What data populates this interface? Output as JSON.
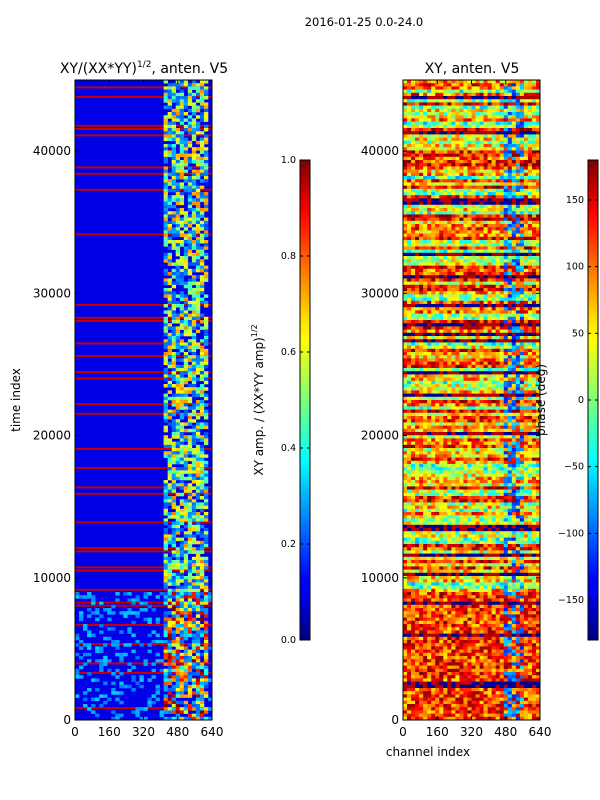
{
  "suptitle": "2016-01-25 0.0-24.0",
  "chart_data": [
    {
      "type": "heatmap",
      "title": "XY/(XX*YY)^1/2, anten. V5",
      "title_main": "XY/(XX*YY)",
      "title_sup": "1/2",
      "title_tail": ", anten. V5",
      "xlabel": "",
      "ylabel": "time index",
      "xlim": [
        0,
        640
      ],
      "ylim": [
        0,
        45000
      ],
      "xticks": [
        0,
        160,
        320,
        480,
        640
      ],
      "yticks": [
        0,
        10000,
        20000,
        30000,
        40000
      ],
      "colormap": "jet",
      "colorbar": {
        "label": "XY amp. / (XX*YY amp)^1/2",
        "label_main": "XY amp. / (XX*YY amp)",
        "label_sup": "1/2",
        "range": [
          0.0,
          1.0
        ],
        "ticks": [
          0.0,
          0.2,
          0.4,
          0.6,
          0.8,
          1.0
        ],
        "tick_labels": [
          "0.0",
          "0.2",
          "0.4",
          "0.6",
          "0.8",
          "1.0"
        ]
      }
    },
    {
      "type": "heatmap",
      "title": "XY, anten. V5",
      "xlabel": "channel index",
      "ylabel": "",
      "xlim": [
        0,
        640
      ],
      "ylim": [
        0,
        45000
      ],
      "xticks": [
        0,
        160,
        320,
        480,
        640
      ],
      "yticks": [
        0,
        10000,
        20000,
        30000,
        40000
      ],
      "colormap": "jet",
      "colorbar": {
        "label": "phase (deg)",
        "range": [
          -180,
          180
        ],
        "ticks": [
          -150,
          -100,
          -50,
          0,
          50,
          100,
          150
        ],
        "tick_labels": [
          "−150",
          "−100",
          "−50",
          "0",
          "50",
          "100",
          "150"
        ]
      }
    }
  ]
}
